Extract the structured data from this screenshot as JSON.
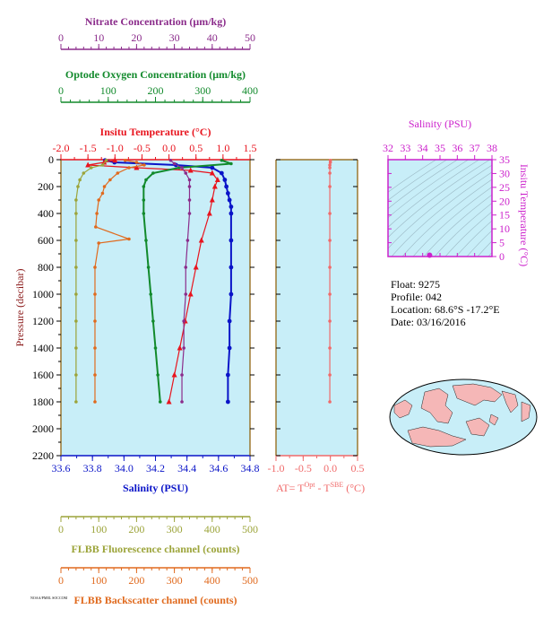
{
  "colors": {
    "nitrate": "#8b2c8b",
    "oxygen": "#128a2c",
    "temperature": "#e8141e",
    "salinity": "#0a14c8",
    "fluorescence": "#9ca43a",
    "backscatter": "#e06a1e",
    "delta_t": "#f06a6a",
    "ts_axis": "#cc22cc",
    "panel_bg": "#c8eef8"
  },
  "info": {
    "float": "Float:  9275",
    "profile": "Profile:  042",
    "location": "Location:  68.6°S  -17.2°E",
    "date": "Date:  03/16/2016"
  },
  "footer_text": "NOAA/PMEL  SOCCOM",
  "chart_data": [
    {
      "type": "line",
      "panel": "profile",
      "ylabel": "Pressure (decibar)",
      "ylim": [
        2200,
        0
      ],
      "yticks": [
        0,
        200,
        400,
        600,
        800,
        1000,
        1200,
        1400,
        1600,
        1800,
        2000,
        2200
      ],
      "grid": false,
      "axes": {
        "nitrate": {
          "label": "Nitrate Concentration (μm/kg)",
          "lim": [
            0,
            50
          ],
          "ticks": [
            0,
            10,
            20,
            30,
            40,
            50
          ]
        },
        "oxygen": {
          "label": "Optode Oxygen Concentration (μm/kg)",
          "lim": [
            0,
            400
          ],
          "ticks": [
            0,
            100,
            200,
            300,
            400
          ]
        },
        "temperature": {
          "label": "Insitu Temperature (°C)",
          "lim": [
            -2.0,
            1.5
          ],
          "ticks": [
            "-2.0",
            "-1.5",
            "-1.0",
            "-0.5",
            "0.0",
            "0.5",
            "1.0",
            "1.5"
          ]
        },
        "salinity": {
          "label": "Salinity (PSU)",
          "lim": [
            33.6,
            34.8
          ],
          "ticks": [
            "33.6",
            "33.8",
            "34.0",
            "34.2",
            "34.4",
            "34.6",
            "34.8"
          ]
        },
        "fluorescence": {
          "label": "FLBB Fluorescence channel (counts)",
          "lim": [
            0,
            500
          ],
          "ticks": [
            0,
            100,
            200,
            300,
            400,
            500
          ]
        },
        "backscatter": {
          "label": "FLBB Backscatter channel (counts)",
          "lim": [
            0,
            500
          ],
          "ticks": [
            0,
            100,
            200,
            300,
            400,
            500
          ]
        }
      },
      "series": [
        {
          "key": "salinity",
          "pressure": [
            5,
            20,
            40,
            60,
            100,
            150,
            200,
            250,
            300,
            350,
            400,
            600,
            800,
            1000,
            1200,
            1400,
            1600,
            1800
          ],
          "values": [
            33.88,
            33.94,
            34.33,
            34.56,
            34.62,
            34.64,
            34.65,
            34.66,
            34.67,
            34.68,
            34.68,
            34.68,
            34.68,
            34.68,
            34.67,
            34.67,
            34.66,
            34.66
          ]
        },
        {
          "key": "temperature",
          "pressure": [
            5,
            20,
            40,
            60,
            80,
            100,
            150,
            200,
            300,
            400,
            600,
            800,
            1000,
            1200,
            1400,
            1600,
            1800
          ],
          "values": [
            -1.0,
            -1.2,
            -1.5,
            -0.6,
            0.4,
            0.8,
            0.9,
            0.85,
            0.8,
            0.75,
            0.6,
            0.5,
            0.4,
            0.3,
            0.2,
            0.1,
            0.0
          ]
        },
        {
          "key": "oxygen",
          "pressure": [
            5,
            30,
            60,
            100,
            150,
            200,
            300,
            400,
            600,
            800,
            1000,
            1200,
            1400,
            1600,
            1800
          ],
          "values": [
            340,
            360,
            250,
            195,
            180,
            175,
            175,
            175,
            180,
            185,
            190,
            195,
            200,
            205,
            210
          ]
        },
        {
          "key": "nitrate",
          "pressure": [
            5,
            30,
            60,
            100,
            150,
            200,
            300,
            400,
            600,
            800,
            1000,
            1200,
            1400,
            1600,
            1800
          ],
          "values": [
            29,
            30,
            32,
            33,
            34,
            34,
            34,
            34,
            33.5,
            33,
            33,
            32.5,
            32.5,
            32,
            32
          ]
        },
        {
          "key": "fluorescence",
          "pressure": [
            5,
            40,
            60,
            100,
            150,
            200,
            300,
            400,
            600,
            800,
            1000,
            1200,
            1400,
            1600,
            1800
          ],
          "values": [
            120,
            110,
            80,
            60,
            50,
            45,
            40,
            40,
            40,
            40,
            40,
            40,
            40,
            40,
            40
          ]
        },
        {
          "key": "backscatter",
          "pressure": [
            5,
            20,
            40,
            60,
            100,
            150,
            200,
            250,
            300,
            400,
            500,
            590,
            620,
            800,
            1000,
            1200,
            1400,
            1600,
            1800
          ],
          "values": [
            170,
            200,
            220,
            180,
            150,
            130,
            115,
            110,
            100,
            95,
            92,
            180,
            100,
            90,
            90,
            90,
            90,
            90,
            90
          ]
        }
      ]
    },
    {
      "type": "line",
      "panel": "delta_t",
      "xlabel_parts": [
        "AT= T",
        "Opt",
        " - T",
        "SBE",
        " (°C)"
      ],
      "xlim": [
        -1.0,
        0.5
      ],
      "xticks": [
        "-1.0",
        "-0.5",
        "0.0",
        "0.5"
      ],
      "ylim": [
        2200,
        0
      ],
      "series": [
        {
          "key": "delta_t",
          "pressure": [
            5,
            20,
            40,
            60,
            100,
            200,
            400,
            600,
            800,
            1000,
            1200,
            1400,
            1600,
            1800
          ],
          "values": [
            0.0,
            0.0,
            -0.01,
            -0.01,
            -0.01,
            -0.01,
            -0.01,
            -0.01,
            -0.01,
            -0.01,
            -0.01,
            -0.01,
            -0.01,
            -0.01
          ]
        }
      ]
    },
    {
      "type": "scatter",
      "panel": "ts_diagram",
      "title": "Salinity (PSU)",
      "ylabel": "Insitu Temperature (°C)",
      "xlim": [
        32,
        38
      ],
      "xticks": [
        32,
        33,
        34,
        35,
        36,
        37,
        38
      ],
      "ylim": [
        0,
        35
      ],
      "yticks": [
        0,
        5,
        10,
        15,
        20,
        25,
        30,
        35
      ],
      "points": [
        {
          "x": 34.4,
          "y": 0.5
        }
      ]
    }
  ]
}
